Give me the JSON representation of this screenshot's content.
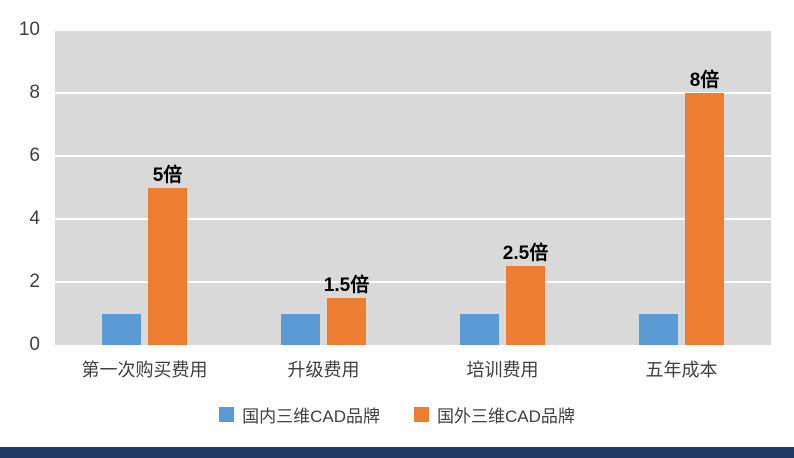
{
  "chart_data": {
    "type": "bar",
    "categories": [
      "第一次购买费用",
      "升级费用",
      "培训费用",
      "五年成本"
    ],
    "series": [
      {
        "name": "国内三维CAD品牌",
        "color": "#5B9BD5",
        "values": [
          1,
          1,
          1,
          1
        ],
        "labels": [
          "",
          "",
          "",
          ""
        ]
      },
      {
        "name": "国外三维CAD品牌",
        "color": "#ED7D31",
        "values": [
          5,
          1.5,
          2.5,
          8
        ],
        "labels": [
          "5倍",
          "1.5倍",
          "2.5倍",
          "8倍"
        ]
      }
    ],
    "title": "",
    "xlabel": "",
    "ylabel": "",
    "ylim": [
      0,
      10
    ],
    "yticks": [
      0,
      2,
      4,
      6,
      8,
      10
    ],
    "grid": true,
    "legend_position": "bottom"
  },
  "style": {
    "plot_background": "#D9D9D9",
    "gridline_color": "#FFFFFF",
    "series1_color": "#5B9BD5",
    "series2_color": "#ED7D31",
    "axis_text_color": "#404040",
    "data_label_color": "#000000",
    "bottom_accent_color": "#1F3864"
  }
}
